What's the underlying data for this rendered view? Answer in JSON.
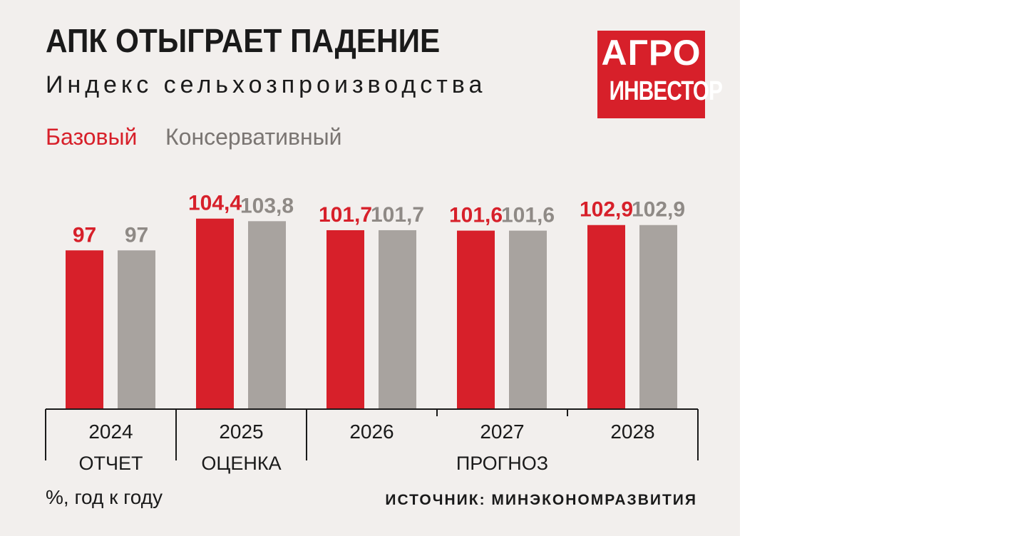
{
  "header": {
    "title": "АПК ОТЫГРАЕТ ПАДЕНИЕ",
    "subtitle": "Индекс сельхозпроизводства"
  },
  "logo": {
    "line1": "АГРО",
    "line2": "ИНВЕСТОР"
  },
  "footer": {
    "unit": "%, год к году",
    "source": "ИСТОЧНИК: МИНЭКОНОМРАЗВИТИЯ"
  },
  "colors": {
    "base": "#d7202a",
    "conservative": "#a8a39f",
    "axis": "#1a1a1a",
    "background": "#f2efed"
  },
  "chart_data": {
    "type": "bar",
    "categories": [
      "2024",
      "2025",
      "2026",
      "2027",
      "2028"
    ],
    "series": [
      {
        "name": "Базовый",
        "values": [
          97,
          104.4,
          101.7,
          101.6,
          102.9
        ],
        "labels": [
          "97",
          "104,4",
          "101,7",
          "101,6",
          "102,9"
        ]
      },
      {
        "name": "Консервативный",
        "values": [
          97,
          103.8,
          101.7,
          101.6,
          102.9
        ],
        "labels": [
          "97",
          "103,8",
          "101,7",
          "101,6",
          "102,9"
        ]
      }
    ],
    "groups": [
      {
        "label": "ОТЧЕТ",
        "categories": [
          "2024"
        ]
      },
      {
        "label": "ОЦЕНКА",
        "categories": [
          "2025"
        ]
      },
      {
        "label": "ПРОГНОЗ",
        "categories": [
          "2026",
          "2027",
          "2028"
        ]
      }
    ],
    "legend": "top-left",
    "grid": false
  }
}
